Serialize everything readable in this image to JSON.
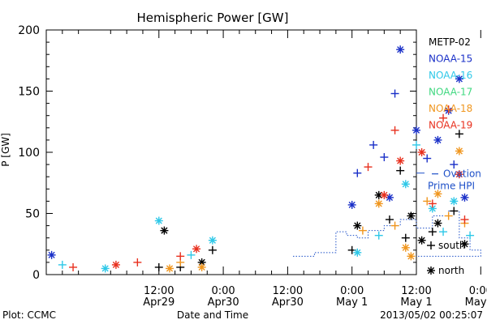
{
  "footer": {
    "plot_credit": "Plot: CCMC",
    "timestamp": "2013/05/02 00:25:07"
  },
  "chart_data": {
    "type": "scatter",
    "title": "Hemispheric Power [GW]",
    "xlabel": "Date and Time",
    "ylabel": "P [GW]",
    "ylim": [
      0,
      200
    ],
    "yticks": [
      0,
      50,
      100,
      150,
      200
    ],
    "xlim_hours": [
      -9,
      60
    ],
    "xticks": [
      {
        "h": 12,
        "line1": "12:00",
        "line2": "Apr29"
      },
      {
        "h": 24,
        "line1": "0:00",
        "line2": "Apr30"
      },
      {
        "h": 36,
        "line1": "12:00",
        "line2": "Apr30"
      },
      {
        "h": 48,
        "line1": "0:00",
        "line2": "May 1"
      },
      {
        "h": 60,
        "line1": "12:00",
        "line2": "May 1"
      },
      {
        "h": 72,
        "line1": "0:00",
        "line2": "May 2"
      }
    ],
    "grid": false,
    "legend_position": "right",
    "marker_legend": [
      {
        "symbol": "+",
        "label": "south"
      },
      {
        "symbol": "*",
        "label": "north"
      }
    ],
    "series": [
      {
        "name": "METP-02",
        "color": "#000000",
        "points": [
          {
            "h": 12,
            "v": 6,
            "m": "+"
          },
          {
            "h": 13,
            "v": 36,
            "m": "*"
          },
          {
            "h": 16,
            "v": 6,
            "m": "+"
          },
          {
            "h": 20,
            "v": 10,
            "m": "*"
          },
          {
            "h": 22,
            "v": 20,
            "m": "+"
          },
          {
            "h": 53,
            "v": 65,
            "m": "*"
          },
          {
            "h": 55,
            "v": 45,
            "m": "+"
          },
          {
            "h": 57,
            "v": 85,
            "m": "+"
          },
          {
            "h": 58,
            "v": 30,
            "m": "+"
          },
          {
            "h": 59,
            "v": 48,
            "m": "*"
          },
          {
            "h": 61,
            "v": 28,
            "m": "*"
          },
          {
            "h": 63,
            "v": 35,
            "m": "+"
          },
          {
            "h": 64,
            "v": 42,
            "m": "*"
          },
          {
            "h": 67,
            "v": 52,
            "m": "+"
          },
          {
            "h": 68,
            "v": 115,
            "m": "+"
          },
          {
            "h": 69,
            "v": 25,
            "m": "*"
          },
          {
            "h": 48,
            "v": 20,
            "m": "+"
          },
          {
            "h": 49,
            "v": 40,
            "m": "*"
          }
        ]
      },
      {
        "name": "NOAA-15",
        "color": "#1a30c8",
        "points": [
          {
            "h": 48,
            "v": 57,
            "m": "*"
          },
          {
            "h": 49,
            "v": 83,
            "m": "+"
          },
          {
            "h": 52,
            "v": 106,
            "m": "+"
          },
          {
            "h": 55,
            "v": 63,
            "m": "*"
          },
          {
            "h": 56,
            "v": 148,
            "m": "+"
          },
          {
            "h": 57,
            "v": 184,
            "m": "*"
          },
          {
            "h": 60,
            "v": 118,
            "m": "*"
          },
          {
            "h": 62,
            "v": 95,
            "m": "+"
          },
          {
            "h": 64,
            "v": 110,
            "m": "*"
          },
          {
            "h": 66,
            "v": 134,
            "m": "*"
          },
          {
            "h": 67,
            "v": 90,
            "m": "+"
          },
          {
            "h": 68,
            "v": 160,
            "m": "*"
          },
          {
            "h": 69,
            "v": 63,
            "m": "*"
          },
          {
            "h": 54,
            "v": 96,
            "m": "+"
          },
          {
            "h": -8,
            "v": 16,
            "m": "*"
          }
        ]
      },
      {
        "name": "NOAA-16",
        "color": "#2ec8e8",
        "points": [
          {
            "h": -6,
            "v": 8,
            "m": "+"
          },
          {
            "h": 2,
            "v": 5,
            "m": "*"
          },
          {
            "h": 12,
            "v": 44,
            "m": "*"
          },
          {
            "h": 18,
            "v": 16,
            "m": "+"
          },
          {
            "h": 22,
            "v": 28,
            "m": "*"
          },
          {
            "h": 49,
            "v": 18,
            "m": "*"
          },
          {
            "h": 53,
            "v": 32,
            "m": "+"
          },
          {
            "h": 58,
            "v": 74,
            "m": "*"
          },
          {
            "h": 60,
            "v": 106,
            "m": "+"
          },
          {
            "h": 63,
            "v": 54,
            "m": "*"
          },
          {
            "h": 65,
            "v": 35,
            "m": "+"
          },
          {
            "h": 67,
            "v": 60,
            "m": "*"
          },
          {
            "h": 70,
            "v": 32,
            "m": "+"
          }
        ]
      },
      {
        "name": "NOAA-17",
        "color": "#40d880",
        "points": []
      },
      {
        "name": "NOAA-18",
        "color": "#f0961e",
        "points": [
          {
            "h": 14,
            "v": 5,
            "m": "*"
          },
          {
            "h": 16,
            "v": 10,
            "m": "+"
          },
          {
            "h": 20,
            "v": 6,
            "m": "*"
          },
          {
            "h": 50,
            "v": 36,
            "m": "+"
          },
          {
            "h": 53,
            "v": 58,
            "m": "*"
          },
          {
            "h": 56,
            "v": 40,
            "m": "+"
          },
          {
            "h": 58,
            "v": 22,
            "m": "*"
          },
          {
            "h": 59,
            "v": 15,
            "m": "*"
          },
          {
            "h": 62,
            "v": 60,
            "m": "+"
          },
          {
            "h": 64,
            "v": 66,
            "m": "*"
          },
          {
            "h": 66,
            "v": 48,
            "m": "+"
          },
          {
            "h": 68,
            "v": 101,
            "m": "*"
          },
          {
            "h": 69,
            "v": 42,
            "m": "+"
          }
        ]
      },
      {
        "name": "NOAA-19",
        "color": "#e8301e",
        "points": [
          {
            "h": -4,
            "v": 6,
            "m": "+"
          },
          {
            "h": 4,
            "v": 8,
            "m": "*"
          },
          {
            "h": 8,
            "v": 10,
            "m": "+"
          },
          {
            "h": 16,
            "v": 15,
            "m": "+"
          },
          {
            "h": 19,
            "v": 21,
            "m": "*"
          },
          {
            "h": 51,
            "v": 88,
            "m": "+"
          },
          {
            "h": 54,
            "v": 65,
            "m": "*"
          },
          {
            "h": 56,
            "v": 118,
            "m": "+"
          },
          {
            "h": 57,
            "v": 93,
            "m": "*"
          },
          {
            "h": 61,
            "v": 100,
            "m": "*"
          },
          {
            "h": 63,
            "v": 58,
            "m": "+"
          },
          {
            "h": 65,
            "v": 128,
            "m": "+"
          },
          {
            "h": 66,
            "v": 135,
            "m": "+"
          },
          {
            "h": 68,
            "v": 82,
            "m": "*"
          },
          {
            "h": 69,
            "v": 45,
            "m": "+"
          }
        ]
      }
    ],
    "ovation": {
      "name": "Ovation Prime HPI",
      "color": "#1e50c8",
      "steps": [
        {
          "h": 37,
          "v": 15
        },
        {
          "h": 41,
          "v": 18
        },
        {
          "h": 45,
          "v": 35
        },
        {
          "h": 47,
          "v": 32
        },
        {
          "h": 49,
          "v": 30
        },
        {
          "h": 51,
          "v": 36
        },
        {
          "h": 54,
          "v": 40
        },
        {
          "h": 57,
          "v": 45
        },
        {
          "h": 60,
          "v": 38
        },
        {
          "h": 63,
          "v": 48
        },
        {
          "h": 66,
          "v": 52
        },
        {
          "h": 68,
          "v": 30
        },
        {
          "h": 70,
          "v": 20
        },
        {
          "h": 72,
          "v": 15
        }
      ],
      "legend_value": 83
    }
  }
}
